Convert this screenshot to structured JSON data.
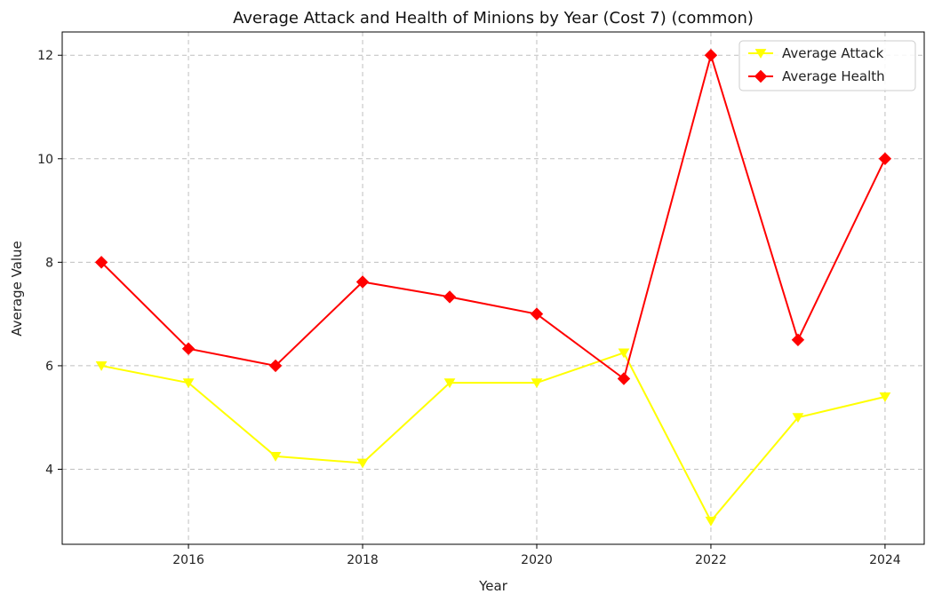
{
  "chart_data": {
    "type": "line",
    "title": "Average Attack and Health of Minions by Year (Cost 7) (common)",
    "xlabel": "Year",
    "ylabel": "Average Value",
    "x": [
      2015,
      2016,
      2017,
      2018,
      2019,
      2020,
      2021,
      2022,
      2023,
      2024
    ],
    "xlim": [
      2014.55,
      2024.45
    ],
    "ylim": [
      2.55,
      12.45
    ],
    "xticks": [
      2016,
      2018,
      2020,
      2022,
      2024
    ],
    "yticks": [
      4,
      6,
      8,
      10,
      12
    ],
    "grid": true,
    "legend_position": "top-right",
    "series": [
      {
        "name": "Average Attack",
        "color": "#ffff00",
        "marker": "triangle-down",
        "values": [
          6.0,
          5.67,
          4.25,
          4.12,
          5.67,
          5.67,
          6.25,
          3.0,
          5.0,
          5.4
        ]
      },
      {
        "name": "Average Health",
        "color": "#ff0000",
        "marker": "diamond",
        "values": [
          8.0,
          6.33,
          6.0,
          7.62,
          7.33,
          7.0,
          5.75,
          12.0,
          6.5,
          10.0
        ]
      }
    ]
  }
}
